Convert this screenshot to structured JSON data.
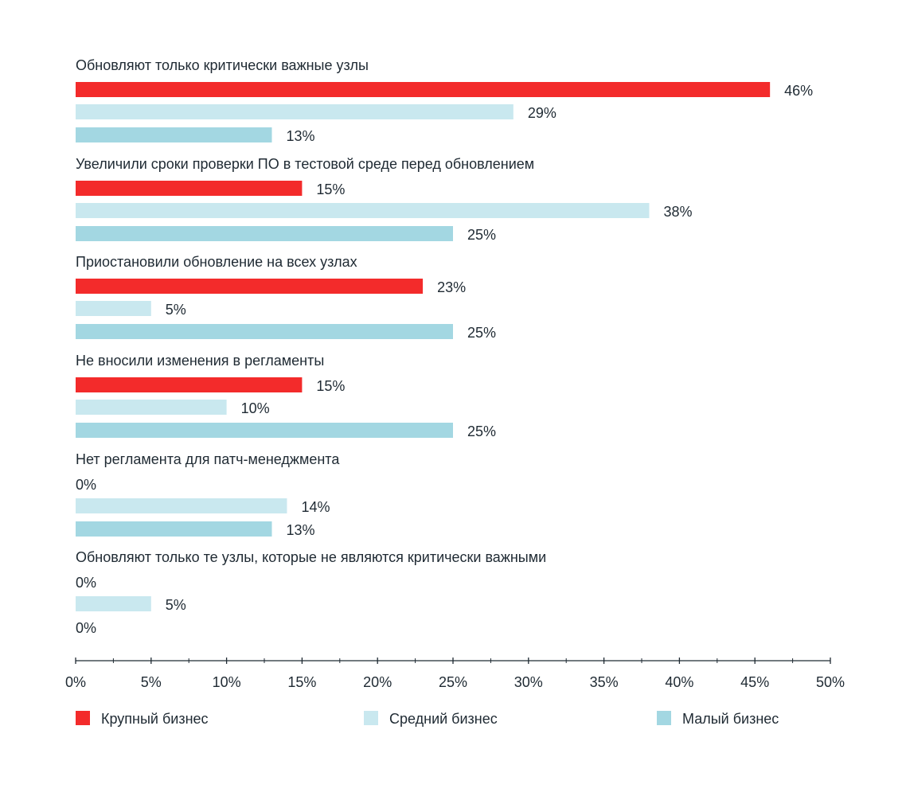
{
  "chart_data": {
    "type": "bar",
    "orientation": "horizontal",
    "categories": [
      "Обновляют только критически важные узлы",
      "Увеличили сроки проверки ПО в тестовой среде перед обновлением",
      "Приостановили обновление на всех узлах",
      "Не вносили изменения в регламенты",
      "Нет регламента для патч-менеджмента",
      "Обновляют только те узлы, которые не являются критически важными"
    ],
    "series": [
      {
        "name": "Крупный бизнес",
        "color": "#f32b2b",
        "values": [
          46,
          15,
          23,
          15,
          0,
          0
        ],
        "labels": [
          "46%",
          "15%",
          "23%",
          "15%",
          "0%",
          "0%"
        ]
      },
      {
        "name": "Средний бизнес",
        "color": "#c9e8ef",
        "values": [
          29,
          38,
          5,
          10,
          14,
          5
        ],
        "labels": [
          "29%",
          "38%",
          "5%",
          "10%",
          "14%",
          "5%"
        ]
      },
      {
        "name": "Малый бизнес",
        "color": "#a3d7e2",
        "values": [
          13,
          25,
          25,
          25,
          13,
          0
        ],
        "labels": [
          "13%",
          "25%",
          "25%",
          "25%",
          "13%",
          "0%"
        ]
      }
    ],
    "xlim": [
      0,
      50
    ],
    "xticks": [
      "0%",
      "5%",
      "10%",
      "15%",
      "20%",
      "25%",
      "30%",
      "35%",
      "40%",
      "45%",
      "50%"
    ],
    "grid": false,
    "legend_position": "bottom"
  }
}
